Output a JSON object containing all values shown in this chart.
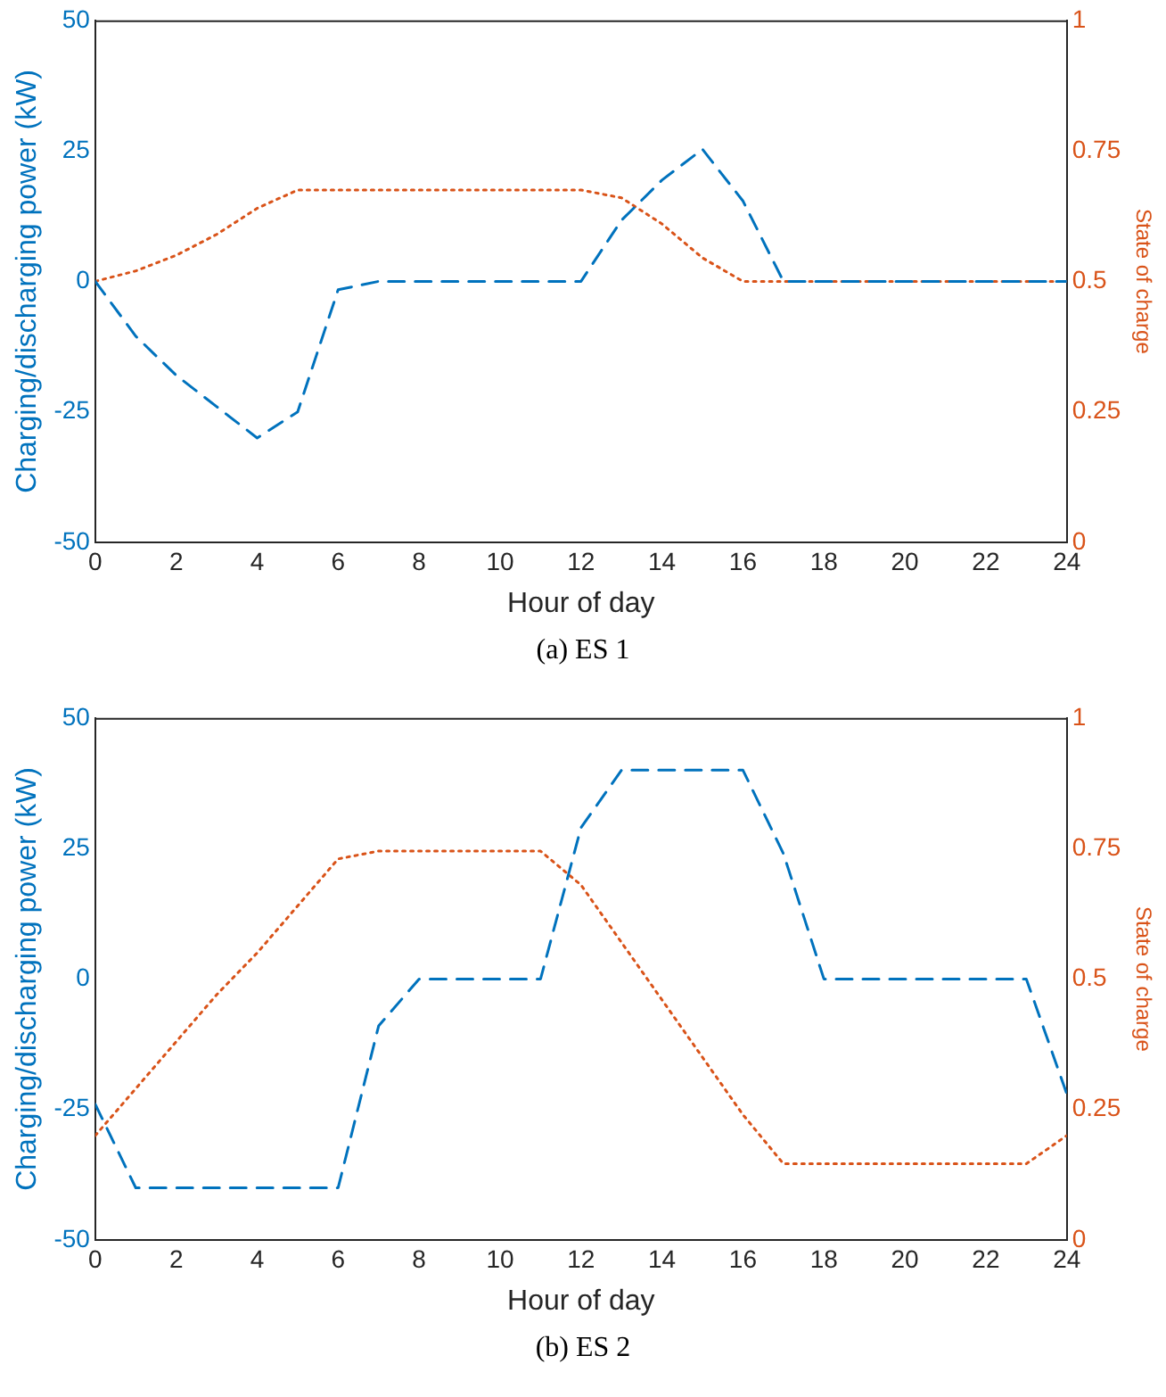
{
  "chart_data": [
    {
      "type": "line",
      "xlabel": "Hour of day",
      "ylabel": "Charging/discharging power (kW)",
      "y2label": "State of charge",
      "annotations": [
        "(a) ES 1"
      ],
      "x": [
        0,
        1,
        2,
        3,
        4,
        5,
        6,
        7,
        8,
        9,
        10,
        11,
        12,
        13,
        14,
        15,
        16,
        17,
        18,
        19,
        20,
        21,
        22,
        23,
        24
      ],
      "xlim": [
        0,
        24
      ],
      "xticks": [
        0,
        2,
        4,
        6,
        8,
        10,
        12,
        14,
        16,
        18,
        20,
        22,
        24
      ],
      "ylim": [
        -50,
        50
      ],
      "yticks": [
        -50,
        -25,
        0,
        25,
        50
      ],
      "y2lim": [
        0,
        1
      ],
      "y2ticks": [
        0,
        0.25,
        0.5,
        0.75,
        1
      ],
      "grid": false,
      "legend": false,
      "marker": "none",
      "series": [
        {
          "color": "#0072bd",
          "line_style": "dashed",
          "values": [
            0,
            -10.5,
            -18,
            -24,
            -30,
            -25,
            -1.6,
            0,
            0,
            0,
            0,
            0,
            0,
            11.7,
            19.4,
            25.3,
            15.4,
            0,
            0,
            0,
            0,
            0,
            0,
            0,
            0
          ]
        },
        {
          "color": "#d95319",
          "line_style": "dotted",
          "axis": "y2",
          "values": [
            0.5,
            0.52,
            0.55,
            0.59,
            0.64,
            0.675,
            0.675,
            0.675,
            0.675,
            0.675,
            0.675,
            0.675,
            0.675,
            0.66,
            0.61,
            0.545,
            0.5,
            0.5,
            0.5,
            0.5,
            0.5,
            0.5,
            0.5,
            0.5,
            0.5
          ]
        }
      ]
    },
    {
      "type": "line",
      "xlabel": "Hour of day",
      "ylabel": "Charging/discharging power (kW)",
      "y2label": "State of charge",
      "annotations": [
        "(b) ES 2"
      ],
      "x": [
        0,
        1,
        2,
        3,
        4,
        5,
        6,
        7,
        8,
        9,
        10,
        11,
        12,
        13,
        14,
        15,
        16,
        17,
        18,
        19,
        20,
        21,
        22,
        23,
        24
      ],
      "xlim": [
        0,
        24
      ],
      "xticks": [
        0,
        2,
        4,
        6,
        8,
        10,
        12,
        14,
        16,
        18,
        20,
        22,
        24
      ],
      "ylim": [
        -50,
        50
      ],
      "yticks": [
        -50,
        -25,
        0,
        25,
        50
      ],
      "y2lim": [
        0,
        1
      ],
      "y2ticks": [
        0,
        0.25,
        0.5,
        0.75,
        1
      ],
      "grid": false,
      "legend": false,
      "marker": "none",
      "series": [
        {
          "color": "#0072bd",
          "line_style": "dashed",
          "values": [
            -24,
            -40,
            -40,
            -40,
            -40,
            -40,
            -40,
            -9,
            0,
            0,
            0,
            0,
            29,
            40,
            40,
            40,
            40,
            24,
            0,
            0,
            0,
            0,
            0,
            0,
            -22
          ]
        },
        {
          "color": "#d95319",
          "line_style": "dotted",
          "axis": "y2",
          "values": [
            0.2,
            0.29,
            0.38,
            0.47,
            0.55,
            0.64,
            0.73,
            0.745,
            0.745,
            0.745,
            0.745,
            0.745,
            0.68,
            0.57,
            0.46,
            0.35,
            0.24,
            0.146,
            0.146,
            0.146,
            0.146,
            0.146,
            0.146,
            0.146,
            0.2
          ]
        }
      ]
    }
  ]
}
